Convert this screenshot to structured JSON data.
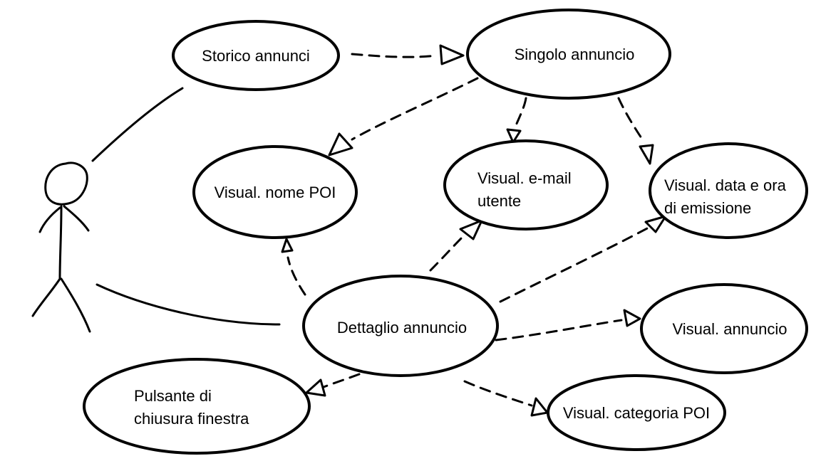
{
  "diagram": {
    "use_cases": {
      "storico": "Storico annunci",
      "singolo": "Singolo annuncio",
      "nome_poi": "Visual. nome POI",
      "email_line1": "Visual. e-mail",
      "email_line2": "utente",
      "data_line1": "Visual. data e ora",
      "data_line2": "di emissione",
      "dettaglio": "Dettaglio annuncio",
      "visual_annuncio": "Visual. annuncio",
      "pulsante_line1": "Pulsante di",
      "pulsante_line2": "chiusura finestra",
      "categoria": "Visual. categoria POI"
    },
    "colors": {
      "stroke": "#000000",
      "fill": "#ffffff"
    }
  }
}
